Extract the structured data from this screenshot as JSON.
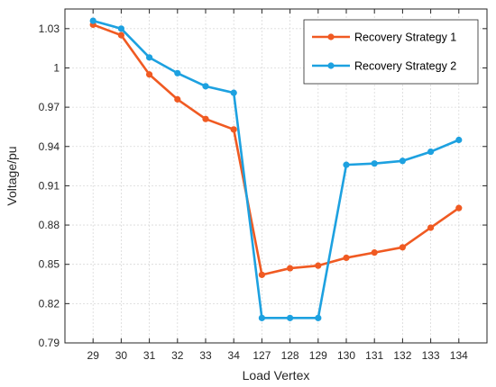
{
  "chart_data": {
    "type": "line",
    "xlabel": "Load Vertex",
    "ylabel": "Voltage/pu",
    "categories": [
      "29",
      "30",
      "31",
      "32",
      "33",
      "34",
      "127",
      "128",
      "129",
      "130",
      "131",
      "132",
      "133",
      "134"
    ],
    "y_ticks": [
      0.79,
      0.82,
      0.85,
      0.88,
      0.91,
      0.94,
      0.97,
      1,
      1.03
    ],
    "y_tick_labels": [
      "0.79",
      "0.82",
      "0.85",
      "0.88",
      "0.91",
      "0.94",
      "0.97",
      "1",
      "1.03"
    ],
    "ylim": [
      0.79,
      1.045
    ],
    "grid": true,
    "legend_position": "top-right",
    "series": [
      {
        "name": "Recovery Strategy 1",
        "color": "#F05A22",
        "values": [
          1.033,
          1.025,
          0.995,
          0.976,
          0.961,
          0.953,
          0.842,
          0.847,
          0.849,
          0.855,
          0.859,
          0.863,
          0.878,
          0.893
        ]
      },
      {
        "name": "Recovery Strategy 2",
        "color": "#1DA1E0",
        "values": [
          1.036,
          1.03,
          1.008,
          0.996,
          0.986,
          0.981,
          0.809,
          0.809,
          0.809,
          0.926,
          0.927,
          0.929,
          0.936,
          0.945
        ]
      }
    ]
  }
}
